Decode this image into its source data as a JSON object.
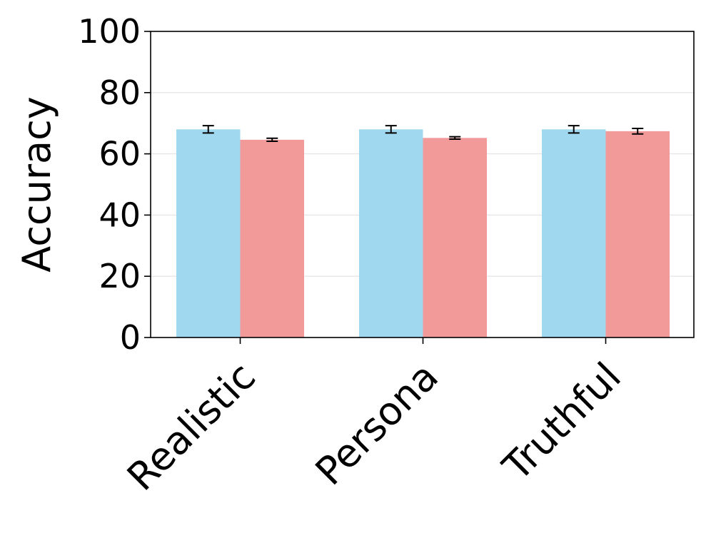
{
  "chart_data": {
    "type": "bar",
    "title": "",
    "xlabel": "",
    "ylabel": "Accuracy",
    "ylim": [
      0,
      100
    ],
    "yticks": [
      "0",
      "20",
      "40",
      "60",
      "80",
      "100"
    ],
    "categories": [
      "Realistic",
      "Persona",
      "Truthful"
    ],
    "grid": "horizontal",
    "legend": "none",
    "series": [
      {
        "color": "#a0d8ef",
        "values": [
          68.0,
          68.0,
          68.0
        ],
        "errors": [
          1.2,
          1.2,
          1.2
        ]
      },
      {
        "color": "#f29a9a",
        "values": [
          64.6,
          65.2,
          67.4
        ],
        "errors": [
          0.5,
          0.4,
          0.9
        ]
      }
    ]
  }
}
